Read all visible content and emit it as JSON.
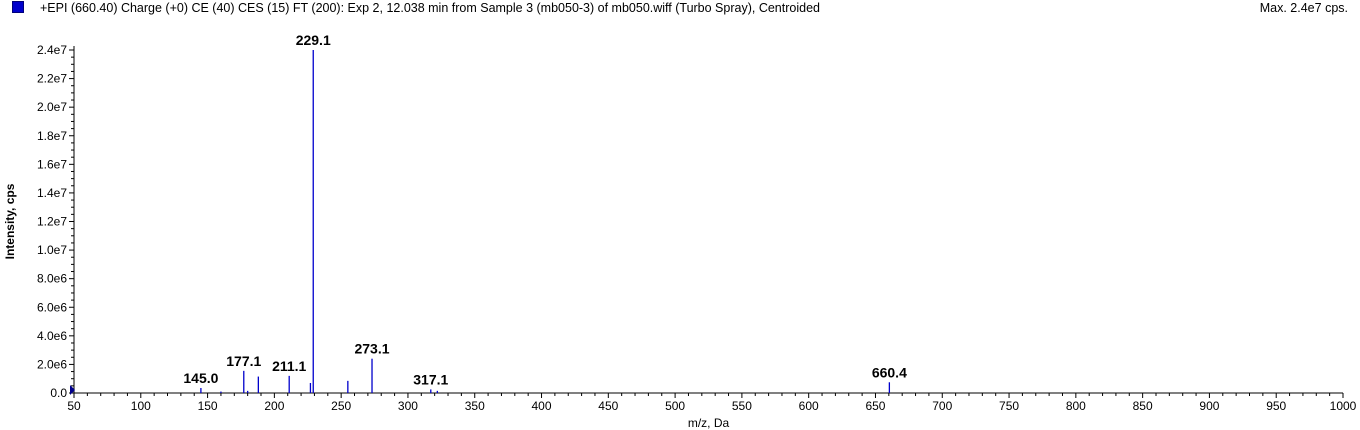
{
  "header": {
    "title": "+EPI (660.40) Charge (+0) CE (40) CES (15) FT (200): Exp 2, 12.038 min from Sample 3 (mb050-3) of mb050.wiff (Turbo Spray), Centroided",
    "max_label": "Max. 2.4e7 cps."
  },
  "colors": {
    "series": "#0000cc",
    "axis": "#000000",
    "swatch": "#0000cc"
  },
  "chart_data": {
    "type": "bar",
    "xlabel": "m/z, Da",
    "ylabel": "Intensity, cps",
    "xlim": [
      50,
      1000
    ],
    "ylim": [
      0,
      24000000
    ],
    "x_ticks": [
      50,
      100,
      150,
      200,
      250,
      300,
      350,
      400,
      450,
      500,
      550,
      600,
      650,
      700,
      750,
      800,
      850,
      900,
      950,
      1000
    ],
    "x_tick_labels": [
      "50",
      "100",
      "150",
      "200",
      "250",
      "300",
      "350",
      "400",
      "450",
      "500",
      "550",
      "600",
      "650",
      "700",
      "750",
      "800",
      "850",
      "900",
      "950",
      "1000"
    ],
    "y_ticks": [
      0,
      2000000,
      4000000,
      6000000,
      8000000,
      10000000,
      12000000,
      14000000,
      16000000,
      18000000,
      20000000,
      22000000,
      24000000
    ],
    "y_tick_labels": [
      "0.0",
      "2.0e6",
      "4.0e6",
      "6.0e6",
      "8.0e6",
      "1.0e7",
      "1.2e7",
      "1.4e7",
      "1.6e7",
      "1.8e7",
      "2.0e7",
      "2.2e7",
      "2.4e7"
    ],
    "grid": false,
    "peaks": [
      {
        "mz": 145.0,
        "intensity": 350000
      },
      {
        "mz": 160.0,
        "intensity": 100000
      },
      {
        "mz": 177.1,
        "intensity": 1550000
      },
      {
        "mz": 180.0,
        "intensity": 150000
      },
      {
        "mz": 188.0,
        "intensity": 1150000
      },
      {
        "mz": 211.1,
        "intensity": 1200000
      },
      {
        "mz": 227.0,
        "intensity": 700000
      },
      {
        "mz": 229.1,
        "intensity": 24000000
      },
      {
        "mz": 255.0,
        "intensity": 850000
      },
      {
        "mz": 273.1,
        "intensity": 2400000
      },
      {
        "mz": 317.1,
        "intensity": 250000
      },
      {
        "mz": 322.0,
        "intensity": 150000
      },
      {
        "mz": 660.4,
        "intensity": 750000
      }
    ],
    "annotations": [
      {
        "text": "145.0",
        "mz": 145.0,
        "intensity": 350000
      },
      {
        "text": "177.1",
        "mz": 177.1,
        "intensity": 1550000
      },
      {
        "text": "211.1",
        "mz": 211.1,
        "intensity": 1200000
      },
      {
        "text": "229.1",
        "mz": 229.1,
        "intensity": 24000000
      },
      {
        "text": "273.1",
        "mz": 273.1,
        "intensity": 2400000
      },
      {
        "text": "317.1",
        "mz": 317.1,
        "intensity": 250000
      },
      {
        "text": "660.4",
        "mz": 660.4,
        "intensity": 750000
      }
    ]
  }
}
